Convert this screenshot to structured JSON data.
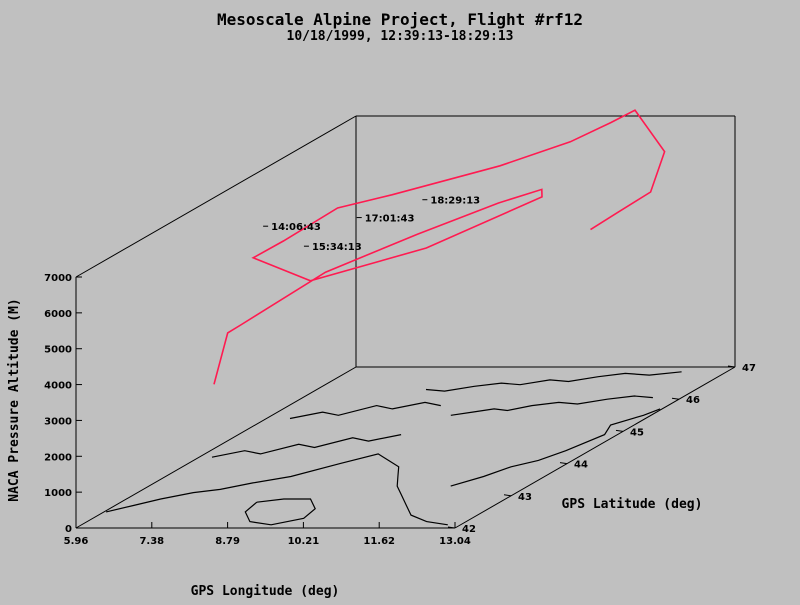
{
  "chart_data": {
    "type": "line",
    "title": "Mesoscale Alpine Project, Flight #rf12",
    "subtitle": "10/18/1999, 12:39:13-18:29:13",
    "xlabel": "GPS Longitude (deg)",
    "ylabel": "GPS Latitude (deg)",
    "zlabel": "NACA Pressure Altitude (M)",
    "xlim": [
      5.96,
      13.04
    ],
    "ylim": [
      42,
      47
    ],
    "zlim": [
      0,
      7000
    ],
    "x_ticks": [
      "5.96",
      "7.38",
      "8.79",
      "10.21",
      "11.62",
      "13.04"
    ],
    "y_ticks": [
      "42",
      "43",
      "44",
      "45",
      "46",
      "47"
    ],
    "z_ticks": [
      "0",
      "1000",
      "2000",
      "3000",
      "4000",
      "5000",
      "6000",
      "7000"
    ],
    "series_color": "#ff1a50",
    "annotations": [
      {
        "label": "14:06:43",
        "x": 6.85,
        "y": 44.58,
        "z": 6100
      },
      {
        "label": "15:34:13",
        "x": 7.33,
        "y": 44.85,
        "z": 5300
      },
      {
        "label": "17:01:43",
        "x": 7.27,
        "y": 45.85,
        "z": 5200
      },
      {
        "label": "18:29:13",
        "x": 7.45,
        "y": 46.85,
        "z": 4800
      }
    ]
  }
}
